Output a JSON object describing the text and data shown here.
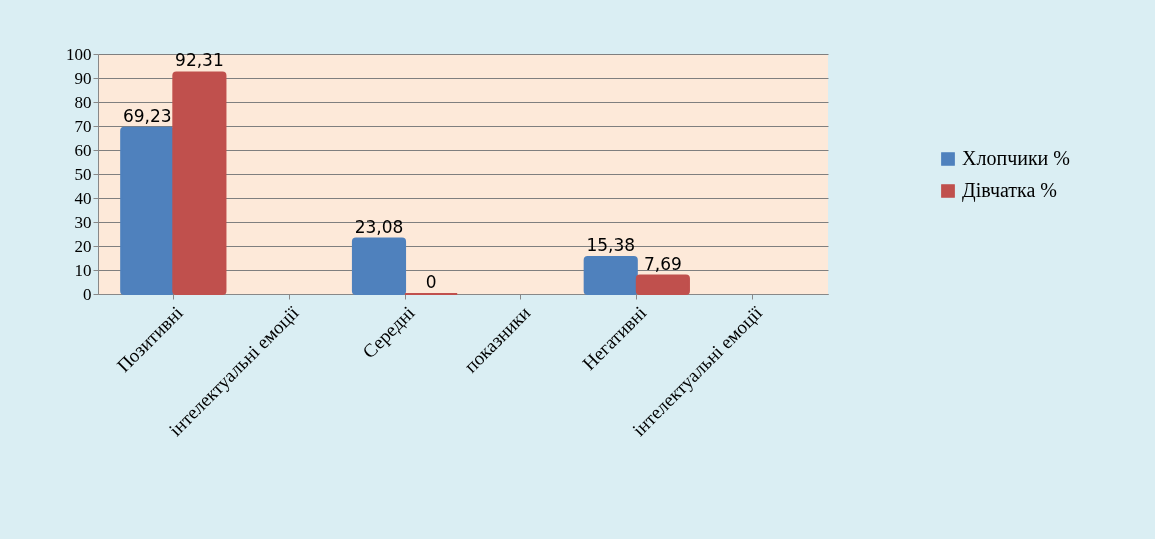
{
  "chart_data": {
    "type": "bar",
    "categories": [
      "Позитивні",
      "інтелектуальні емоції",
      "Середні",
      "показники",
      "Негативні",
      "інтелектуальні емоції"
    ],
    "series": [
      {
        "name": "Хлопчики %",
        "color": "#4f81bd",
        "values": [
          69.23,
          null,
          23.08,
          null,
          15.38,
          null
        ],
        "value_labels": [
          "69,23",
          null,
          "23,08",
          null,
          "15,38",
          null
        ]
      },
      {
        "name": "Дівчатка %",
        "color": "#c0504d",
        "values": [
          92.31,
          null,
          0,
          null,
          7.69,
          null
        ],
        "value_labels": [
          "92,31",
          null,
          "0",
          null,
          "7,69",
          null
        ]
      }
    ],
    "ylim": [
      0,
      100
    ],
    "yticks": [
      0,
      10,
      20,
      30,
      40,
      50,
      60,
      70,
      80,
      90,
      100
    ],
    "grid": "y",
    "legend": "right"
  }
}
